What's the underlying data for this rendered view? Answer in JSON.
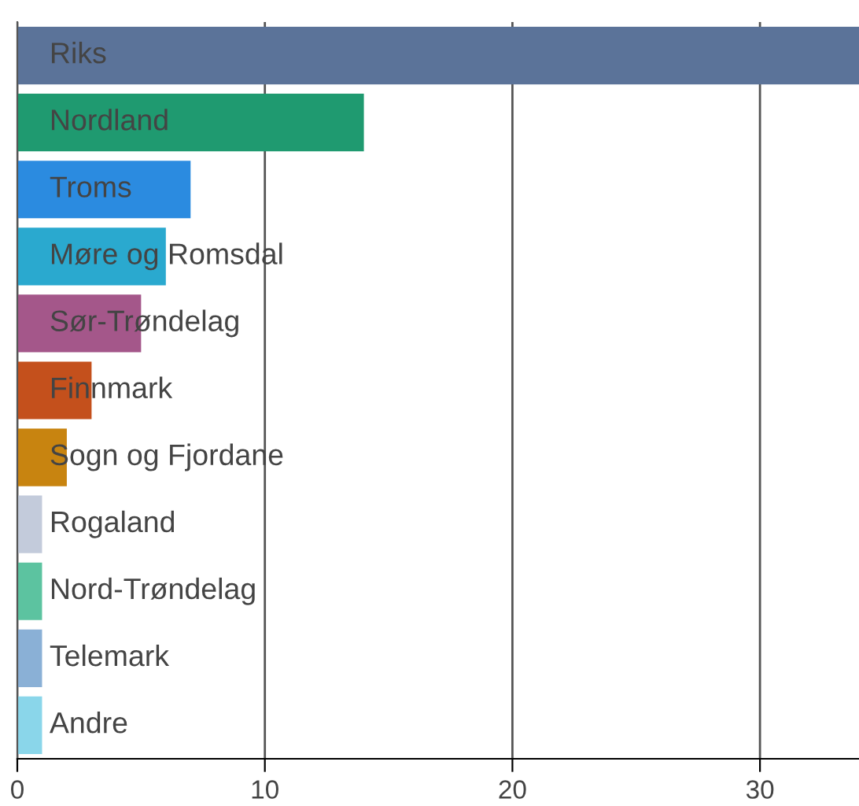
{
  "chart_data": {
    "type": "bar",
    "orientation": "horizontal",
    "categories": [
      "Riks",
      "Nordland",
      "Troms",
      "Møre og Romsdal",
      "Sør-Trøndelag",
      "Finnmark",
      "Sogn og Fjordane",
      "Rogaland",
      "Nord-Trøndelag",
      "Telemark",
      "Andre"
    ],
    "values": [
      34,
      14,
      7,
      6,
      5,
      3,
      2,
      1,
      1,
      1,
      1
    ],
    "colors": [
      "#5b7399",
      "#1f9a70",
      "#2b8be0",
      "#2aa9cf",
      "#a4578a",
      "#c4501c",
      "#c88410",
      "#c3cbdb",
      "#5cc3a0",
      "#8ab0d6",
      "#8ad6ea"
    ],
    "xlim": [
      0,
      34
    ],
    "xticks": [
      0,
      10,
      20,
      30
    ],
    "grid": "x"
  }
}
